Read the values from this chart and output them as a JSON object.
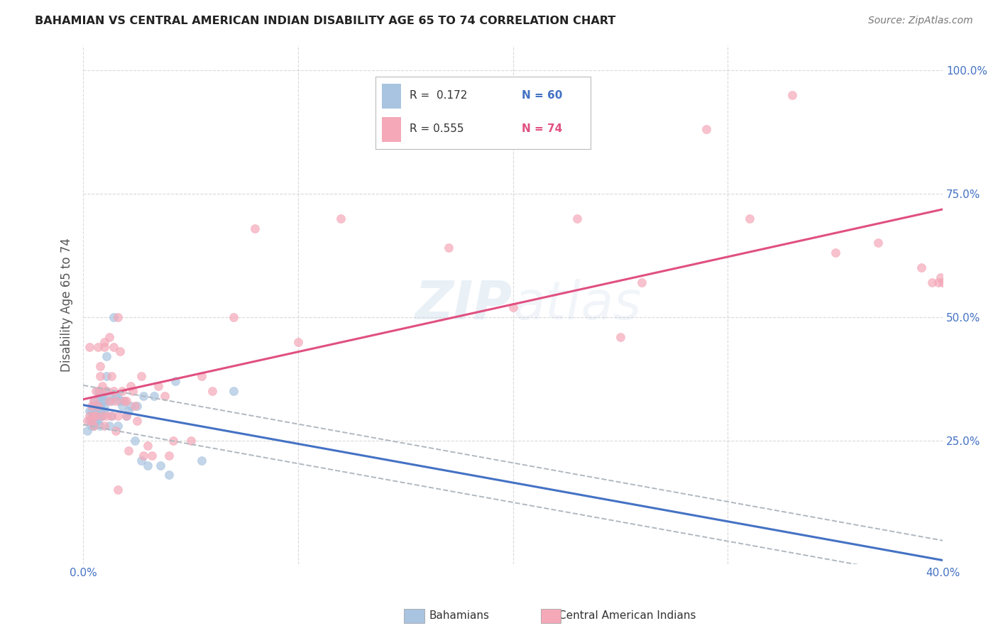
{
  "title": "BAHAMIAN VS CENTRAL AMERICAN INDIAN DISABILITY AGE 65 TO 74 CORRELATION CHART",
  "source": "Source: ZipAtlas.com",
  "ylabel": "Disability Age 65 to 74",
  "xlim": [
    0.0,
    0.4
  ],
  "ylim": [
    0.0,
    1.05
  ],
  "xtick_vals": [
    0.0,
    0.1,
    0.2,
    0.3,
    0.4
  ],
  "xticklabels": [
    "0.0%",
    "",
    "",
    "",
    "40.0%"
  ],
  "ytick_vals": [
    0.25,
    0.5,
    0.75,
    1.0
  ],
  "yticklabels": [
    "25.0%",
    "50.0%",
    "75.0%",
    "100.0%"
  ],
  "color_bahamian": "#a8c4e0",
  "color_central": "#f4a8b8",
  "color_blue_line": "#4472c4",
  "color_pink_line": "#e05080",
  "color_blue_text": "#4472c4",
  "color_pink_text": "#e05080",
  "color_dashed": "#b0b8c0",
  "background_color": "#ffffff",
  "grid_color": "#d0d0d0",
  "marker_size": 75,
  "bahamian_x": [
    0.002,
    0.003,
    0.003,
    0.004,
    0.004,
    0.004,
    0.005,
    0.005,
    0.005,
    0.005,
    0.005,
    0.006,
    0.006,
    0.006,
    0.006,
    0.007,
    0.007,
    0.007,
    0.007,
    0.007,
    0.008,
    0.008,
    0.008,
    0.008,
    0.008,
    0.009,
    0.009,
    0.009,
    0.009,
    0.01,
    0.01,
    0.01,
    0.011,
    0.011,
    0.011,
    0.012,
    0.012,
    0.013,
    0.013,
    0.014,
    0.015,
    0.016,
    0.016,
    0.017,
    0.018,
    0.019,
    0.02,
    0.021,
    0.022,
    0.024,
    0.025,
    0.027,
    0.028,
    0.03,
    0.033,
    0.036,
    0.04,
    0.043,
    0.055,
    0.07
  ],
  "bahamian_y": [
    0.27,
    0.31,
    0.29,
    0.3,
    0.31,
    0.28,
    0.32,
    0.3,
    0.29,
    0.33,
    0.28,
    0.32,
    0.3,
    0.31,
    0.29,
    0.35,
    0.33,
    0.3,
    0.29,
    0.32,
    0.34,
    0.32,
    0.3,
    0.31,
    0.28,
    0.33,
    0.34,
    0.31,
    0.3,
    0.32,
    0.31,
    0.33,
    0.42,
    0.38,
    0.35,
    0.34,
    0.28,
    0.3,
    0.33,
    0.5,
    0.34,
    0.34,
    0.28,
    0.33,
    0.32,
    0.33,
    0.3,
    0.31,
    0.32,
    0.25,
    0.32,
    0.21,
    0.34,
    0.2,
    0.34,
    0.2,
    0.18,
    0.37,
    0.21,
    0.35
  ],
  "central_x": [
    0.002,
    0.003,
    0.003,
    0.004,
    0.004,
    0.005,
    0.005,
    0.005,
    0.006,
    0.006,
    0.007,
    0.007,
    0.008,
    0.008,
    0.008,
    0.009,
    0.009,
    0.01,
    0.01,
    0.01,
    0.011,
    0.011,
    0.012,
    0.012,
    0.013,
    0.013,
    0.014,
    0.014,
    0.015,
    0.015,
    0.016,
    0.016,
    0.017,
    0.018,
    0.019,
    0.02,
    0.021,
    0.022,
    0.023,
    0.024,
    0.025,
    0.027,
    0.028,
    0.03,
    0.032,
    0.035,
    0.038,
    0.042,
    0.05,
    0.055,
    0.06,
    0.07,
    0.08,
    0.1,
    0.12,
    0.15,
    0.17,
    0.2,
    0.23,
    0.26,
    0.29,
    0.31,
    0.33,
    0.35,
    0.37,
    0.39,
    0.395,
    0.398,
    0.399,
    0.4,
    0.016,
    0.02,
    0.04,
    0.25
  ],
  "central_y": [
    0.29,
    0.3,
    0.44,
    0.29,
    0.32,
    0.3,
    0.33,
    0.28,
    0.3,
    0.35,
    0.44,
    0.32,
    0.38,
    0.35,
    0.4,
    0.3,
    0.36,
    0.45,
    0.28,
    0.44,
    0.35,
    0.3,
    0.46,
    0.33,
    0.38,
    0.3,
    0.35,
    0.44,
    0.33,
    0.27,
    0.5,
    0.3,
    0.43,
    0.35,
    0.33,
    0.3,
    0.23,
    0.36,
    0.35,
    0.32,
    0.29,
    0.38,
    0.22,
    0.24,
    0.22,
    0.36,
    0.34,
    0.25,
    0.25,
    0.38,
    0.35,
    0.5,
    0.68,
    0.45,
    0.7,
    0.85,
    0.64,
    0.52,
    0.7,
    0.57,
    0.88,
    0.7,
    0.95,
    0.63,
    0.65,
    0.6,
    0.57,
    0.57,
    0.58,
    0.57,
    0.15,
    0.33,
    0.22,
    0.46
  ]
}
